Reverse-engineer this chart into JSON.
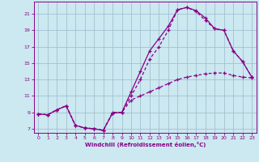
{
  "xlabel": "Windchill (Refroidissement éolien,°C)",
  "bg_color": "#cce8f0",
  "line_color": "#880088",
  "grid_color": "#99bbcc",
  "xlim": [
    -0.5,
    23.5
  ],
  "ylim": [
    6.5,
    22.5
  ],
  "xticks": [
    0,
    1,
    2,
    3,
    4,
    5,
    6,
    7,
    8,
    9,
    10,
    11,
    12,
    13,
    14,
    15,
    16,
    17,
    18,
    19,
    20,
    21,
    22,
    23
  ],
  "yticks": [
    7,
    9,
    11,
    13,
    15,
    17,
    19,
    21
  ],
  "series1_x": [
    0,
    1,
    2,
    3,
    4,
    5,
    6,
    7,
    8,
    9,
    10,
    11,
    12,
    13,
    14,
    15,
    16,
    17,
    18,
    19,
    20,
    21,
    22,
    23
  ],
  "series1_y": [
    8.8,
    8.7,
    9.3,
    9.8,
    7.4,
    7.1,
    7.0,
    6.8,
    8.9,
    9.0,
    11.5,
    14.0,
    16.5,
    18.0,
    19.5,
    21.5,
    21.8,
    21.4,
    20.5,
    19.2,
    19.0,
    16.5,
    15.2,
    13.3
  ],
  "series2_x": [
    0,
    1,
    2,
    3,
    4,
    5,
    6,
    7,
    8,
    9,
    10,
    11,
    12,
    13,
    14,
    15,
    16,
    17,
    18,
    19,
    20,
    21,
    22,
    23
  ],
  "series2_y": [
    8.8,
    8.7,
    9.3,
    9.8,
    7.4,
    7.1,
    7.0,
    6.8,
    8.9,
    9.0,
    11.0,
    13.0,
    15.5,
    17.0,
    19.0,
    21.5,
    21.8,
    21.3,
    20.2,
    19.2,
    19.0,
    16.5,
    15.2,
    13.3
  ],
  "series3_x": [
    0,
    1,
    2,
    3,
    4,
    5,
    6,
    7,
    8,
    9,
    10,
    11,
    12,
    13,
    14,
    15,
    16,
    17,
    18,
    19,
    20,
    21,
    22,
    23
  ],
  "series3_y": [
    8.8,
    8.7,
    9.3,
    9.8,
    7.4,
    7.1,
    7.0,
    6.8,
    9.0,
    9.0,
    10.5,
    11.0,
    11.5,
    12.0,
    12.5,
    13.0,
    13.3,
    13.5,
    13.7,
    13.8,
    13.8,
    13.5,
    13.3,
    13.2
  ]
}
